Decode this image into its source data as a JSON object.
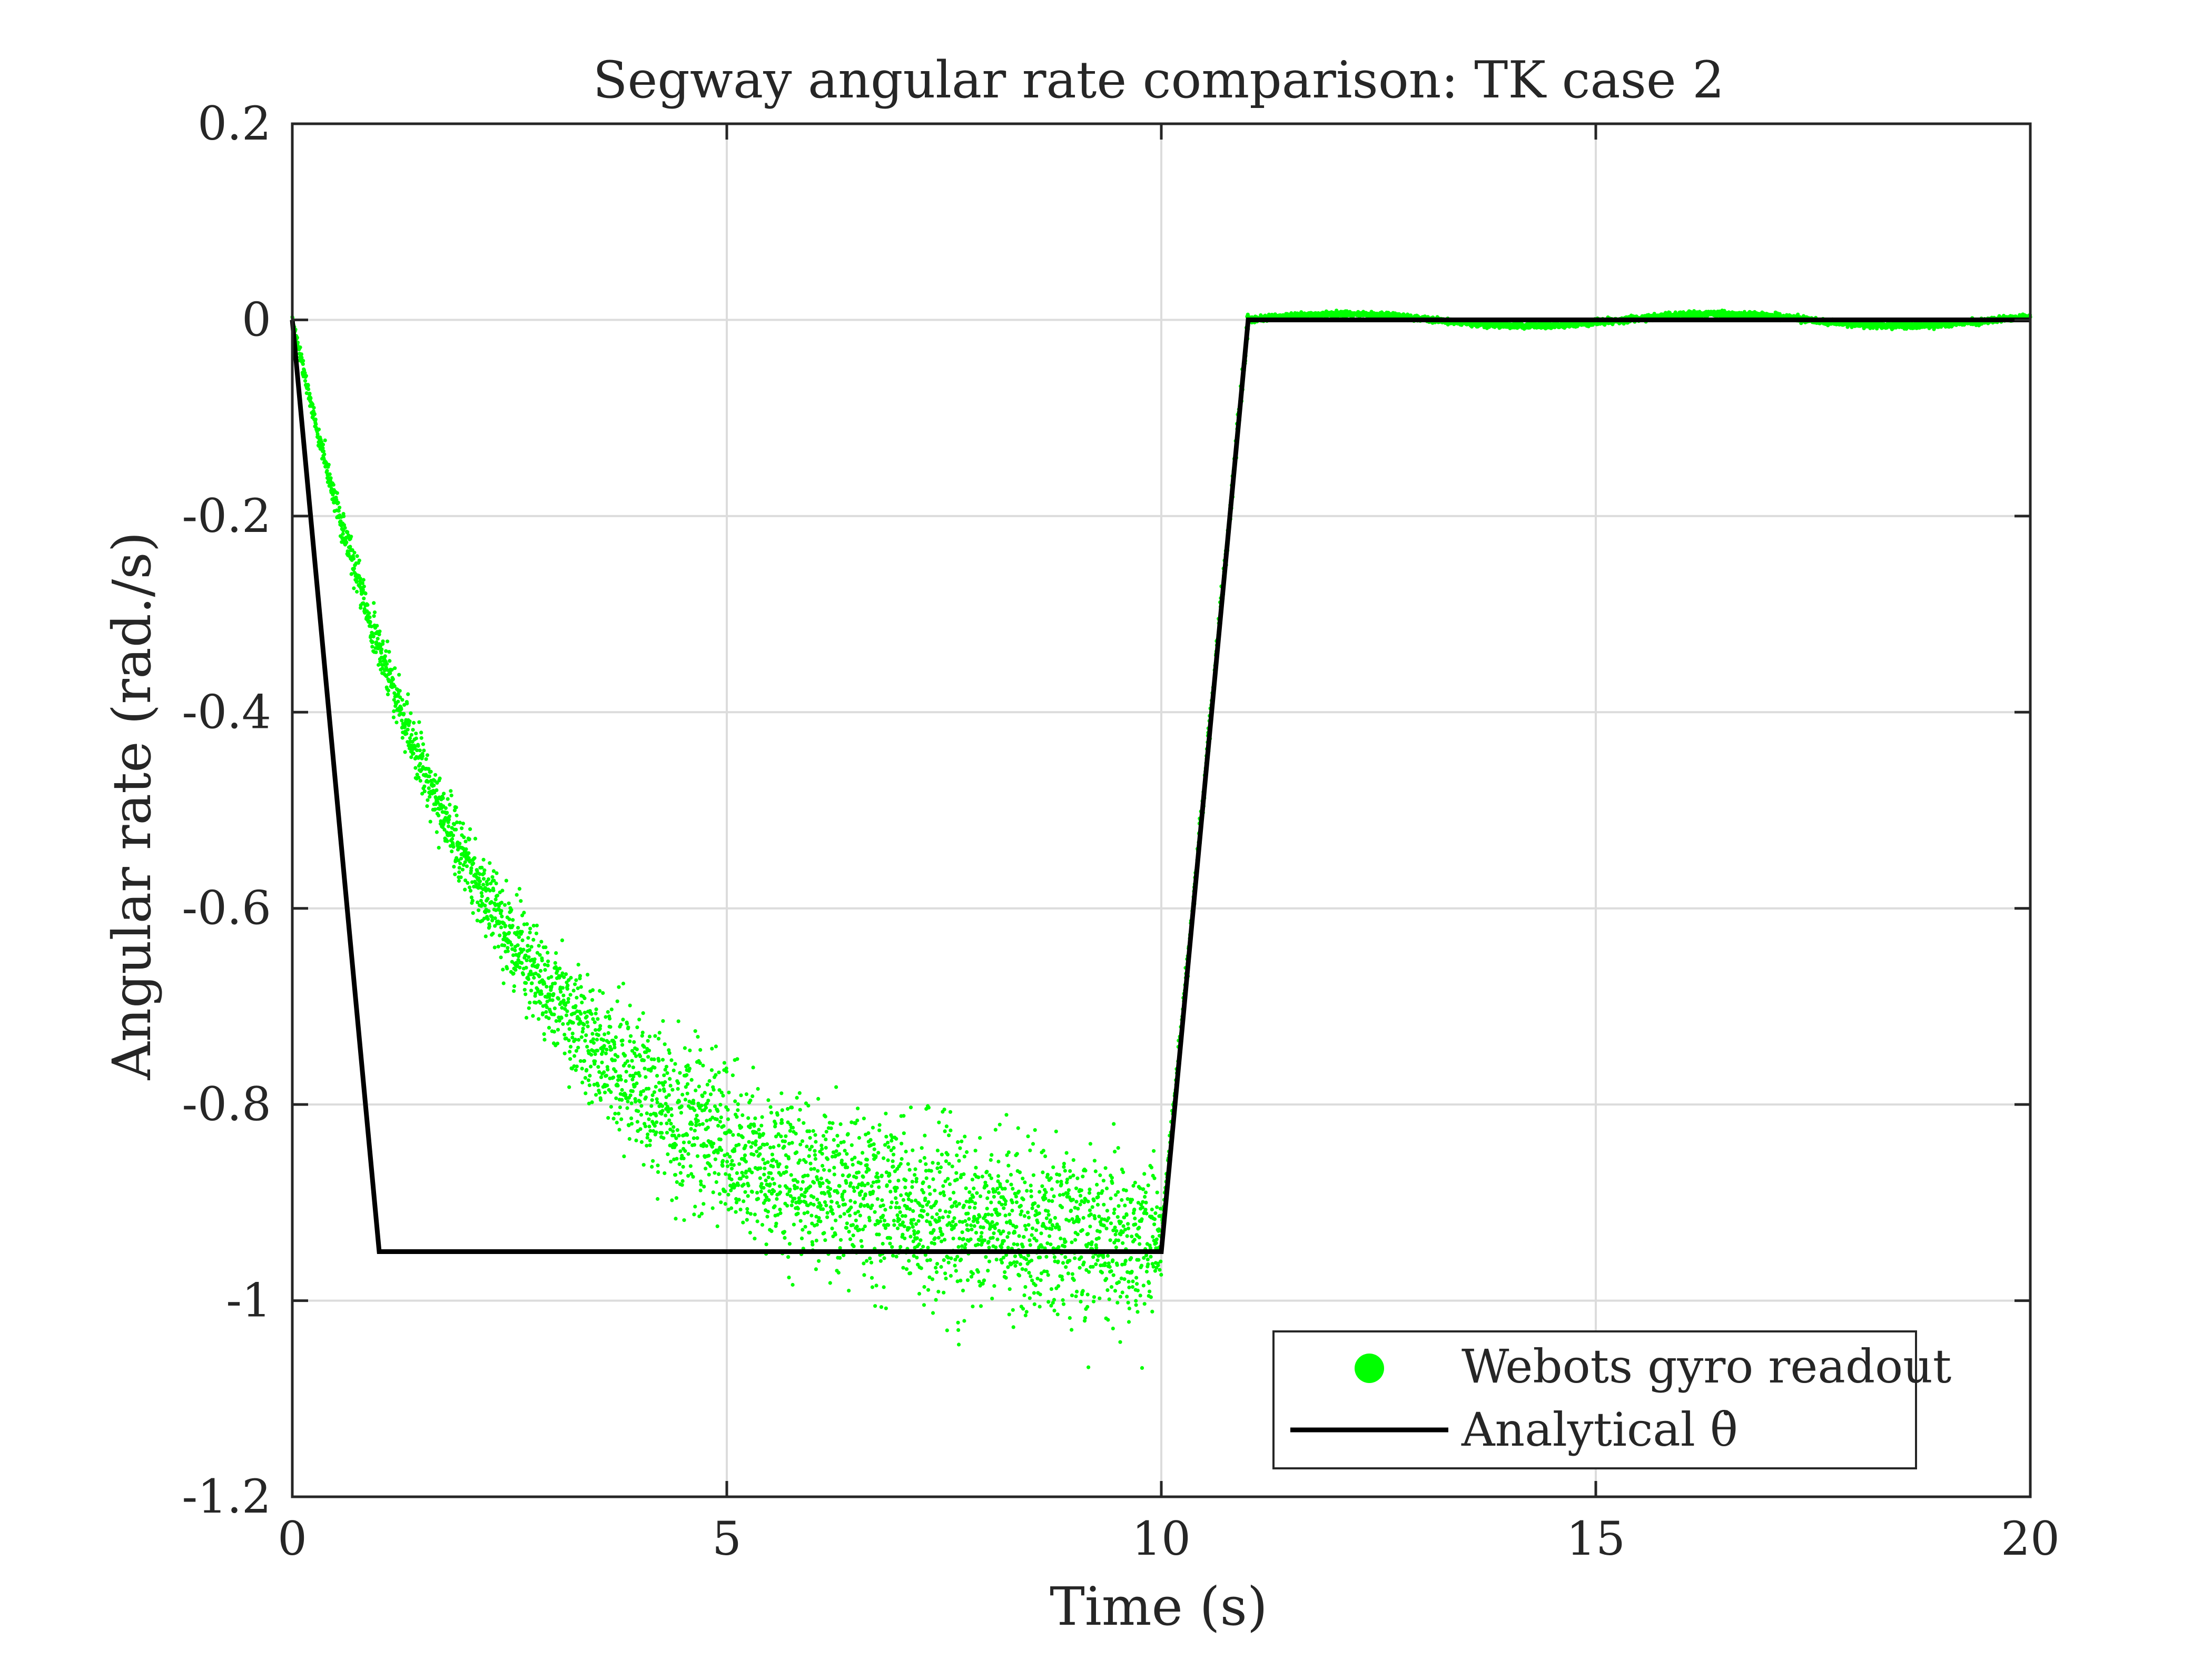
{
  "chart_data": {
    "type": "scatter",
    "title": "Segway angular rate comparison: TK case 2",
    "xlabel": "Time (s)",
    "ylabel": "Angular rate (rad./s)",
    "xlim": [
      0,
      20
    ],
    "ylim": [
      -1.2,
      0.2
    ],
    "xticks": [
      0,
      5,
      10,
      15,
      20
    ],
    "xtick_labels": [
      "0",
      "5",
      "10",
      "15",
      "20"
    ],
    "yticks": [
      0.2,
      0,
      -0.2,
      -0.4,
      -0.6,
      -0.8,
      -1,
      -1.2
    ],
    "ytick_labels": [
      "0.2",
      "0",
      "-0.2",
      "-0.4",
      "-0.6",
      "-0.8",
      "-1",
      "-1.2"
    ],
    "grid": true,
    "legend_position": "bottom-right",
    "legend": [
      {
        "label": "Webots gyro readout",
        "marker": "dot"
      },
      {
        "label": "Analytical θ̇",
        "marker": "line"
      }
    ],
    "series": [
      {
        "name": "Webots gyro readout",
        "kind": "scatter",
        "color": "#00ff00",
        "model": "noisy exponential approach from 0 toward -0.95 (tau ~2.3 s) until t=10 s, linear return to 0 at t=11 s, then small oscillation about 0 until t=20 s",
        "x": [
          0,
          0.5,
          1,
          1.5,
          2,
          2.5,
          3,
          3.5,
          4,
          4.5,
          5,
          5.5,
          6,
          6.5,
          7,
          7.5,
          8,
          8.5,
          9,
          9.5,
          10,
          10.5,
          11,
          12,
          13,
          14,
          15,
          16,
          17,
          18,
          19,
          20
        ],
        "y": [
          0,
          -0.19,
          -0.34,
          -0.46,
          -0.56,
          -0.63,
          -0.69,
          -0.74,
          -0.78,
          -0.82,
          -0.85,
          -0.87,
          -0.89,
          -0.905,
          -0.915,
          -0.925,
          -0.93,
          -0.935,
          -0.94,
          -0.94,
          -0.94,
          -0.47,
          0,
          0,
          0,
          0.005,
          0,
          -0.005,
          0,
          0.005,
          0,
          -0.005
        ]
      },
      {
        "name": "Analytical θ̇",
        "kind": "line",
        "color": "#000000",
        "x": [
          0,
          1,
          10,
          11,
          20
        ],
        "y": [
          0,
          -0.95,
          -0.95,
          0,
          0
        ]
      }
    ]
  }
}
